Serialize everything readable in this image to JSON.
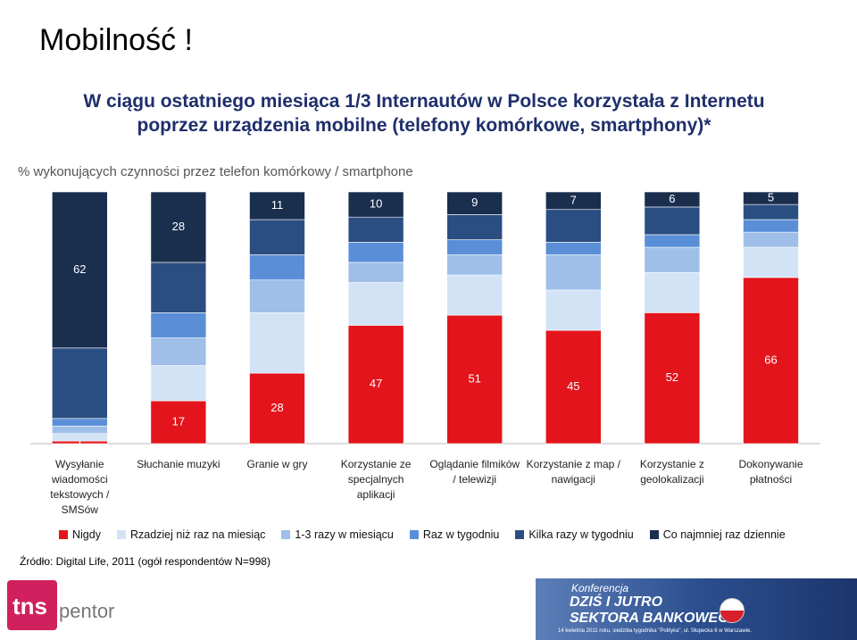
{
  "chart_data": {
    "type": "stacked_bar",
    "title": "Mobilność !",
    "subtitle": "W ciągu ostatniego miesiąca 1/3 Internautów w Polsce korzystała z Internetu poprzez urządzenia mobilne (telefony komórkowe, smartphony)*",
    "y_label": "% wykonujących czynności przez telefon komórkowy / smartphone",
    "categories": [
      "Wysyłanie wiadomości tekstowych / SMSów",
      "Słuchanie muzyki",
      "Granie w gry",
      "Korzystanie ze specjalnych aplikacji",
      "Oglądanie filmików / telewizji",
      "Korzystanie z map / nawigacji",
      "Korzystanie z geolokalizacji",
      "Dokonywanie płatności"
    ],
    "series": [
      {
        "name": "Nigdy",
        "color": "#e3141b",
        "values": [
          1,
          17,
          28,
          47,
          51,
          45,
          52,
          66
        ]
      },
      {
        "name": "Rzadziej niż raz na miesiąc",
        "color": "#d3e3f6",
        "values": [
          3,
          14,
          24,
          17,
          16,
          16,
          16,
          12
        ]
      },
      {
        "name": "1-3 razy w miesiącu",
        "color": "#9fbfe9",
        "values": [
          3,
          11,
          13,
          8,
          8,
          14,
          10,
          6
        ]
      },
      {
        "name": "Raz w tygodniu",
        "color": "#5a8fd8",
        "values": [
          3,
          10,
          10,
          8,
          6,
          5,
          5,
          5
        ]
      },
      {
        "name": "Kilka razy w tygodniu",
        "color": "#2b4e82",
        "values": [
          28,
          20,
          14,
          10,
          10,
          13,
          11,
          6
        ]
      },
      {
        "name": "Co najmniej raz dziennie",
        "color": "#1a2e4e",
        "values": [
          62,
          28,
          11,
          10,
          9,
          7,
          6,
          5
        ]
      }
    ],
    "ylim": [
      0,
      100
    ]
  },
  "source": "Źródło: Digital Life, 2011 (ogół respondentów N=998)",
  "footer": {
    "logo_main": "tns",
    "logo_sub": "pentor",
    "banner_small": "Konferencja",
    "banner_line1": "DZIŚ I JUTRO",
    "banner_line2": "SEKTORA BANKOWEGO",
    "banner_note": "14 kwietnia 2011 roku, siedziba tygodnika \"Polityka\", ul. Słupecka 6 w Warszawie."
  }
}
